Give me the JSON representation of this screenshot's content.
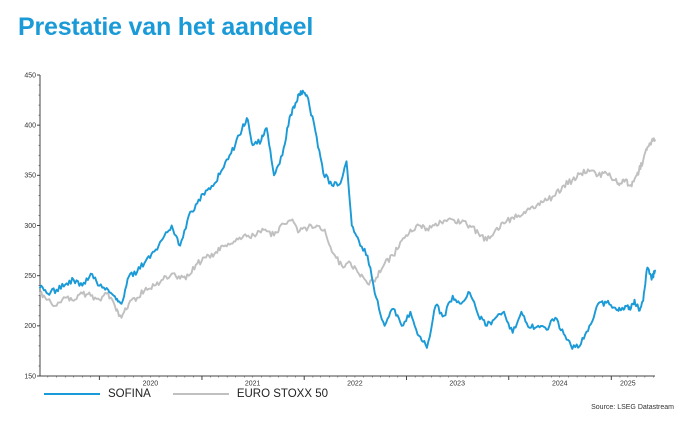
{
  "page": {
    "title": "Prestatie van het aandeel"
  },
  "source": "Source: LSEG Datastream",
  "colors": {
    "sofina": "#1a9ad6",
    "euro_stoxx_50": "#c0c0c0",
    "title": "#1a9ad6",
    "axis": "#444444"
  },
  "chart_data": {
    "type": "line",
    "title": "Prestatie van het aandeel",
    "xlabel": "",
    "ylabel": "",
    "xlim": [
      "2019-06-03",
      "2025-06-06"
    ],
    "ylim": [
      150,
      450
    ],
    "yticks": [
      150,
      200,
      250,
      300,
      350,
      400,
      450
    ],
    "xtick_labels": [
      {
        "label": "2020",
        "date": "2020-07-01"
      },
      {
        "label": "2021",
        "date": "2021-07-01"
      },
      {
        "label": "2022",
        "date": "2022-07-01"
      },
      {
        "label": "2023",
        "date": "2023-07-01"
      },
      {
        "label": "2024",
        "date": "2024-07-01"
      },
      {
        "label": "2025",
        "date": "2025-03-01"
      }
    ],
    "year_boundaries": [
      "2020-01-01",
      "2021-01-01",
      "2022-01-01",
      "2023-01-01",
      "2024-01-01",
      "2025-01-01"
    ],
    "grid": false,
    "legend_position": "bottom-left",
    "series": [
      {
        "name": "SOFINA",
        "color": "#1a9ad6",
        "points": [
          [
            "2019-06-03",
            238
          ],
          [
            "2019-07-01",
            232
          ],
          [
            "2019-08-01",
            236
          ],
          [
            "2019-09-01",
            241
          ],
          [
            "2019-10-01",
            246
          ],
          [
            "2019-11-01",
            240
          ],
          [
            "2019-12-01",
            252
          ],
          [
            "2020-01-01",
            240
          ],
          [
            "2020-02-01",
            236
          ],
          [
            "2020-03-01",
            226
          ],
          [
            "2020-03-20",
            222
          ],
          [
            "2020-04-15",
            249
          ],
          [
            "2020-05-15",
            254
          ],
          [
            "2020-06-15",
            265
          ],
          [
            "2020-07-15",
            274
          ],
          [
            "2020-08-15",
            287
          ],
          [
            "2020-09-15",
            300
          ],
          [
            "2020-10-15",
            280
          ],
          [
            "2020-11-15",
            310
          ],
          [
            "2020-12-15",
            322
          ],
          [
            "2021-01-15",
            335
          ],
          [
            "2021-02-15",
            342
          ],
          [
            "2021-03-15",
            356
          ],
          [
            "2021-04-15",
            372
          ],
          [
            "2021-05-15",
            390
          ],
          [
            "2021-06-10",
            407
          ],
          [
            "2021-07-01",
            380
          ],
          [
            "2021-08-01",
            385
          ],
          [
            "2021-08-20",
            397
          ],
          [
            "2021-09-15",
            350
          ],
          [
            "2021-10-15",
            370
          ],
          [
            "2021-11-10",
            408
          ],
          [
            "2021-12-01",
            422
          ],
          [
            "2021-12-20",
            434
          ],
          [
            "2022-01-10",
            430
          ],
          [
            "2022-02-10",
            394
          ],
          [
            "2022-03-10",
            352
          ],
          [
            "2022-04-10",
            340
          ],
          [
            "2022-05-10",
            342
          ],
          [
            "2022-06-01",
            364
          ],
          [
            "2022-06-20",
            300
          ],
          [
            "2022-07-15",
            285
          ],
          [
            "2022-08-15",
            270
          ],
          [
            "2022-09-15",
            228
          ],
          [
            "2022-10-15",
            200
          ],
          [
            "2022-11-15",
            217
          ],
          [
            "2022-12-15",
            200
          ],
          [
            "2023-01-15",
            214
          ],
          [
            "2023-02-15",
            190
          ],
          [
            "2023-03-15",
            178
          ],
          [
            "2023-04-15",
            220
          ],
          [
            "2023-05-15",
            210
          ],
          [
            "2023-06-15",
            230
          ],
          [
            "2023-07-15",
            222
          ],
          [
            "2023-08-15",
            233
          ],
          [
            "2023-09-15",
            210
          ],
          [
            "2023-10-15",
            200
          ],
          [
            "2023-11-15",
            208
          ],
          [
            "2023-12-15",
            214
          ],
          [
            "2024-01-15",
            193
          ],
          [
            "2024-02-15",
            214
          ],
          [
            "2024-03-15",
            198
          ],
          [
            "2024-04-15",
            200
          ],
          [
            "2024-05-15",
            196
          ],
          [
            "2024-06-15",
            208
          ],
          [
            "2024-07-15",
            192
          ],
          [
            "2024-08-15",
            177
          ],
          [
            "2024-09-15",
            182
          ],
          [
            "2024-10-15",
            200
          ],
          [
            "2024-11-15",
            222
          ],
          [
            "2024-12-15",
            223
          ],
          [
            "2025-01-15",
            218
          ],
          [
            "2025-02-01",
            216
          ],
          [
            "2025-02-20",
            220
          ],
          [
            "2025-03-10",
            216
          ],
          [
            "2025-03-25",
            226
          ],
          [
            "2025-04-10",
            215
          ],
          [
            "2025-04-25",
            225
          ],
          [
            "2025-05-10",
            258
          ],
          [
            "2025-05-25",
            246
          ],
          [
            "2025-06-06",
            255
          ]
        ]
      },
      {
        "name": "EURO STOXX 50",
        "color": "#c0c0c0",
        "points": [
          [
            "2019-06-03",
            232
          ],
          [
            "2019-07-01",
            226
          ],
          [
            "2019-08-01",
            220
          ],
          [
            "2019-09-01",
            228
          ],
          [
            "2019-10-01",
            225
          ],
          [
            "2019-11-01",
            232
          ],
          [
            "2019-12-01",
            230
          ],
          [
            "2020-01-01",
            226
          ],
          [
            "2020-02-01",
            233
          ],
          [
            "2020-03-01",
            215
          ],
          [
            "2020-03-20",
            208
          ],
          [
            "2020-04-15",
            222
          ],
          [
            "2020-05-15",
            228
          ],
          [
            "2020-06-15",
            238
          ],
          [
            "2020-07-15",
            240
          ],
          [
            "2020-08-15",
            246
          ],
          [
            "2020-09-15",
            252
          ],
          [
            "2020-10-15",
            247
          ],
          [
            "2020-11-15",
            250
          ],
          [
            "2020-12-15",
            262
          ],
          [
            "2021-01-15",
            268
          ],
          [
            "2021-02-15",
            272
          ],
          [
            "2021-03-15",
            280
          ],
          [
            "2021-04-15",
            282
          ],
          [
            "2021-05-15",
            288
          ],
          [
            "2021-06-15",
            290
          ],
          [
            "2021-07-15",
            291
          ],
          [
            "2021-08-15",
            296
          ],
          [
            "2021-09-15",
            290
          ],
          [
            "2021-10-15",
            302
          ],
          [
            "2021-11-15",
            305
          ],
          [
            "2021-12-15",
            294
          ],
          [
            "2022-01-15",
            298
          ],
          [
            "2022-02-15",
            300
          ],
          [
            "2022-03-15",
            296
          ],
          [
            "2022-04-15",
            272
          ],
          [
            "2022-05-15",
            260
          ],
          [
            "2022-06-15",
            263
          ],
          [
            "2022-07-15",
            252
          ],
          [
            "2022-08-15",
            242
          ],
          [
            "2022-09-15",
            248
          ],
          [
            "2022-10-15",
            262
          ],
          [
            "2022-11-15",
            270
          ],
          [
            "2022-12-15",
            285
          ],
          [
            "2023-01-15",
            296
          ],
          [
            "2023-02-15",
            300
          ],
          [
            "2023-03-15",
            297
          ],
          [
            "2023-04-15",
            302
          ],
          [
            "2023-05-15",
            305
          ],
          [
            "2023-06-15",
            306
          ],
          [
            "2023-07-15",
            303
          ],
          [
            "2023-08-15",
            300
          ],
          [
            "2023-09-15",
            292
          ],
          [
            "2023-10-15",
            285
          ],
          [
            "2023-11-15",
            296
          ],
          [
            "2023-12-15",
            302
          ],
          [
            "2024-01-15",
            308
          ],
          [
            "2024-02-15",
            310
          ],
          [
            "2024-03-15",
            316
          ],
          [
            "2024-04-15",
            322
          ],
          [
            "2024-05-15",
            325
          ],
          [
            "2024-06-15",
            330
          ],
          [
            "2024-07-15",
            340
          ],
          [
            "2024-08-15",
            345
          ],
          [
            "2024-09-15",
            352
          ],
          [
            "2024-10-15",
            354
          ],
          [
            "2024-11-15",
            350
          ],
          [
            "2024-12-15",
            352
          ],
          [
            "2025-01-15",
            345
          ],
          [
            "2025-02-01",
            342
          ],
          [
            "2025-02-20",
            345
          ],
          [
            "2025-03-10",
            340
          ],
          [
            "2025-03-25",
            346
          ],
          [
            "2025-04-10",
            355
          ],
          [
            "2025-04-25",
            365
          ],
          [
            "2025-05-10",
            378
          ],
          [
            "2025-05-25",
            384
          ],
          [
            "2025-06-06",
            385
          ]
        ]
      }
    ]
  },
  "legend": [
    {
      "label": "SOFINA",
      "color": "#1a9ad6"
    },
    {
      "label": "EURO STOXX 50",
      "color": "#c0c0c0"
    }
  ]
}
